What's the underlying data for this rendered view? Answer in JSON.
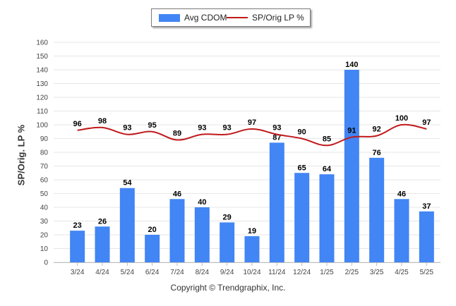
{
  "legend": {
    "bar_label": "Avg CDOM",
    "line_label": "SP/Orig LP %"
  },
  "y_axis_label": "SP/Orig. LP %",
  "footer": "Copyright © Trendgraphix, Inc.",
  "colors": {
    "bar": "#4285f4",
    "line": "#c0191b",
    "grid": "#e6e6e6"
  },
  "chart_data": {
    "type": "bar+line",
    "categories": [
      "3/24",
      "4/24",
      "5/24",
      "6/24",
      "7/24",
      "8/24",
      "9/24",
      "10/24",
      "11/24",
      "12/24",
      "1/25",
      "2/25",
      "3/25",
      "4/25",
      "5/25"
    ],
    "series": [
      {
        "name": "Avg CDOM",
        "type": "bar",
        "values": [
          23,
          26,
          54,
          20,
          46,
          40,
          29,
          19,
          87,
          65,
          64,
          140,
          76,
          46,
          37
        ]
      },
      {
        "name": "SP/Orig LP %",
        "type": "line",
        "values": [
          96,
          98,
          93,
          95,
          89,
          93,
          93,
          97,
          93,
          90,
          85,
          91,
          92,
          100,
          97
        ]
      }
    ],
    "ylabel": "SP/Orig. LP %",
    "ylim": [
      0,
      160
    ],
    "yticks": [
      0,
      10,
      20,
      30,
      40,
      50,
      60,
      70,
      80,
      90,
      100,
      110,
      120,
      130,
      140,
      150,
      160
    ],
    "grid": true,
    "legend_position": "top-center"
  }
}
